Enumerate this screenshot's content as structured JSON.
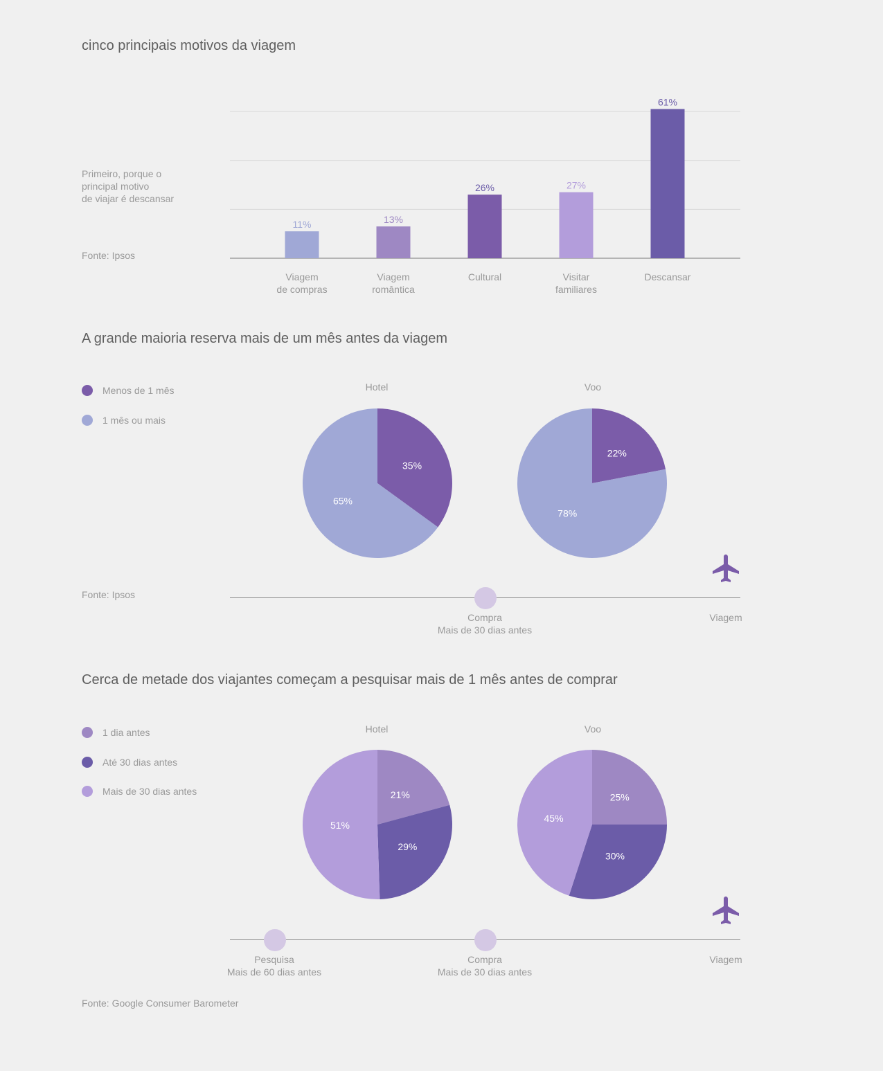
{
  "section1": {
    "title": "cinco principais motivos da viagem",
    "note": [
      "Primeiro, porque o",
      "principal motivo",
      "de viajar é descansar"
    ],
    "source": "Fonte: Ipsos"
  },
  "section2": {
    "title": "A grande maioria reserva mais de um mês antes da viagem",
    "legend": [
      {
        "label": "Menos de 1 mês",
        "color": "#7b5ca9"
      },
      {
        "label": "1 mês ou mais",
        "color": "#a0a8d6"
      }
    ],
    "source": "Fonte: Ipsos",
    "timeline": {
      "compra": "Compra",
      "compra_sub": "Mais de 30 dias antes",
      "viagem": "Viagem"
    }
  },
  "section3": {
    "title": "Cerca de metade dos viajantes começam a pesquisar mais de 1 mês antes de comprar",
    "legend": [
      {
        "label": "1 dia antes",
        "color": "#9e88c3"
      },
      {
        "label": "Até 30 dias antes",
        "color": "#6b5ca8"
      },
      {
        "label": "Mais de 30 dias antes",
        "color": "#b39ddb"
      }
    ],
    "source": "Fonte: Google Consumer Barometer",
    "timeline": {
      "pesquisa": "Pesquisa",
      "pesquisa_sub": "Mais de 60 dias antes",
      "compra": "Compra",
      "compra_sub": "Mais de 30 dias antes",
      "viagem": "Viagem"
    }
  },
  "chart_data": [
    {
      "type": "bar",
      "title": "cinco principais motivos da viagem",
      "categories": [
        [
          "Viagem",
          "de compras"
        ],
        [
          "Viagem",
          "romântica"
        ],
        [
          "Cultural"
        ],
        [
          "Visitar",
          "familiares"
        ],
        [
          "Descansar"
        ]
      ],
      "values": [
        11,
        13,
        26,
        27,
        61
      ],
      "labels": [
        "11%",
        "13%",
        "26%",
        "27%",
        "61%"
      ],
      "colors": [
        "#a0a8d6",
        "#9e88c3",
        "#7b5ca9",
        "#b39ddb",
        "#6b5ca8"
      ],
      "label_colors": [
        "#a0a8d6",
        "#9e88c3",
        "#6b5ca8",
        "#b39ddb",
        "#6b5ca8"
      ],
      "ylim": [
        0,
        60
      ],
      "grid": true
    },
    {
      "type": "pie",
      "title": "Hotel",
      "slices": [
        {
          "name": "Menos de 1 mês",
          "value": 35,
          "label": "35%",
          "color": "#7b5ca9"
        },
        {
          "name": "1 mês ou mais",
          "value": 65,
          "label": "65%",
          "color": "#a0a8d6"
        }
      ]
    },
    {
      "type": "pie",
      "title": "Voo",
      "slices": [
        {
          "name": "Menos de 1 mês",
          "value": 22,
          "label": "22%",
          "color": "#7b5ca9"
        },
        {
          "name": "1 mês ou mais",
          "value": 78,
          "label": "78%",
          "color": "#a0a8d6"
        }
      ]
    },
    {
      "type": "pie",
      "title": "Hotel",
      "slices": [
        {
          "name": "1 dia antes",
          "value": 21,
          "label": "21%",
          "color": "#9e88c3"
        },
        {
          "name": "Até 30 dias antes",
          "value": 29,
          "label": "29%",
          "color": "#6b5ca8"
        },
        {
          "name": "Mais de 30 dias antes",
          "value": 51,
          "label": "51%",
          "color": "#b39ddb"
        }
      ]
    },
    {
      "type": "pie",
      "title": "Voo",
      "slices": [
        {
          "name": "1 dia antes",
          "value": 25,
          "label": "25%",
          "color": "#9e88c3"
        },
        {
          "name": "Até 30 dias antes",
          "value": 30,
          "label": "30%",
          "color": "#6b5ca8"
        },
        {
          "name": "Mais de 30 dias antes",
          "value": 45,
          "label": "45%",
          "color": "#b39ddb"
        }
      ]
    }
  ],
  "icons": {
    "plane": "airplane-icon"
  }
}
